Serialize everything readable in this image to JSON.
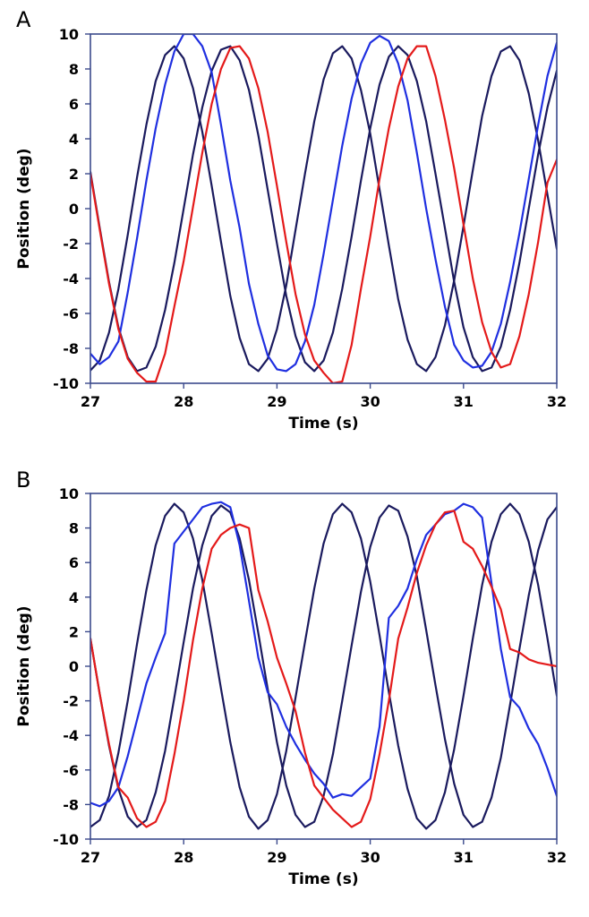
{
  "chart_data": [
    {
      "panel": "A",
      "type": "line",
      "xlabel": "Time (s)",
      "ylabel": "Position (deg)",
      "xlim": [
        27,
        32
      ],
      "ylim": [
        -10,
        10
      ],
      "xticks": [
        27,
        28,
        29,
        30,
        31,
        32
      ],
      "yticks": [
        -10,
        -8,
        -6,
        -4,
        -2,
        0,
        2,
        4,
        6,
        8,
        10
      ],
      "frame_color": "#3b4a8c",
      "series": [
        {
          "color": "#1a1a5e",
          "x": [
            27,
            27.1,
            27.2,
            27.3,
            27.4,
            27.5,
            27.6,
            27.7,
            27.8,
            27.9,
            28.0,
            28.1,
            28.2,
            28.3,
            28.4,
            28.5,
            28.6,
            28.7,
            28.8,
            28.9,
            29.0,
            29.1,
            29.2,
            29.3,
            29.4,
            29.5,
            29.6,
            29.7,
            29.8,
            29.9,
            30.0,
            30.1,
            30.2,
            30.3,
            30.4,
            30.5,
            30.6,
            30.7,
            30.8,
            30.9,
            31.0,
            31.1,
            31.2,
            31.3,
            31.4,
            31.5,
            31.6,
            31.7,
            31.8,
            31.9,
            32.0
          ],
          "y": [
            -9.26,
            -8.7,
            -7.1,
            -4.6,
            -1.5,
            1.8,
            4.8,
            7.3,
            8.8,
            9.3,
            8.6,
            6.9,
            4.4,
            1.3,
            -1.9,
            -5.0,
            -7.4,
            -8.9,
            -9.3,
            -8.6,
            -6.9,
            -4.4,
            -1.2,
            2.0,
            5.0,
            7.4,
            8.9,
            9.3,
            8.6,
            6.8,
            4.3,
            1.1,
            -2.1,
            -5.2,
            -7.5,
            -8.9,
            -9.3,
            -8.5,
            -6.7,
            -4.1,
            -1.0,
            2.2,
            5.3,
            7.6,
            9.0,
            9.3,
            8.5,
            6.6,
            3.9,
            0.8,
            -2.3
          ]
        },
        {
          "color": "#1a1a5e",
          "x": [
            27,
            27.1,
            27.2,
            27.3,
            27.4,
            27.5,
            27.6,
            27.7,
            27.8,
            27.9,
            28.0,
            28.1,
            28.2,
            28.3,
            28.4,
            28.5,
            28.6,
            28.7,
            28.8,
            28.9,
            29.0,
            29.1,
            29.2,
            29.3,
            29.4,
            29.5,
            29.6,
            29.7,
            29.8,
            29.9,
            30.0,
            30.1,
            30.2,
            30.3,
            30.4,
            30.5,
            30.6,
            30.7,
            30.8,
            30.9,
            31.0,
            31.1,
            31.2,
            31.3,
            31.4,
            31.5,
            31.6,
            31.7,
            31.8,
            31.9,
            32.0
          ],
          "y": [
            2.1,
            -1.1,
            -4.2,
            -6.8,
            -8.5,
            -9.3,
            -9.1,
            -7.9,
            -5.8,
            -3.1,
            0.0,
            3.1,
            5.8,
            7.9,
            9.1,
            9.3,
            8.5,
            6.8,
            4.2,
            1.1,
            -2.0,
            -5.0,
            -7.3,
            -8.8,
            -9.3,
            -8.7,
            -7.1,
            -4.6,
            -1.6,
            1.6,
            4.6,
            7.1,
            8.7,
            9.3,
            8.8,
            7.3,
            5.0,
            2.0,
            -1.1,
            -4.2,
            -6.8,
            -8.5,
            -9.3,
            -9.1,
            -7.9,
            -5.8,
            -3.1,
            0.0,
            3.1,
            5.8,
            7.9
          ]
        },
        {
          "color": "#1f2fe0",
          "x": [
            27,
            27.1,
            27.2,
            27.3,
            27.4,
            27.5,
            27.6,
            27.7,
            27.8,
            27.9,
            28.0,
            28.1,
            28.2,
            28.3,
            28.4,
            28.5,
            28.6,
            28.7,
            28.8,
            28.9,
            29.0,
            29.1,
            29.2,
            29.3,
            29.4,
            29.5,
            29.6,
            29.7,
            29.8,
            29.9,
            30.0,
            30.1,
            30.2,
            30.3,
            30.4,
            30.5,
            30.6,
            30.7,
            30.8,
            30.9,
            31.0,
            31.1,
            31.2,
            31.3,
            31.4,
            31.5,
            31.6,
            31.7,
            31.8,
            31.9,
            32.0
          ],
          "y": [
            -8.3,
            -8.9,
            -8.5,
            -7.6,
            -4.8,
            -1.7,
            1.6,
            4.6,
            7.1,
            9.0,
            10.0,
            10.0,
            9.3,
            7.8,
            4.8,
            1.6,
            -1.1,
            -4.3,
            -6.6,
            -8.4,
            -9.2,
            -9.3,
            -8.9,
            -7.6,
            -5.5,
            -2.6,
            0.5,
            3.6,
            6.3,
            8.3,
            9.5,
            9.9,
            9.6,
            8.3,
            6.2,
            3.2,
            0.0,
            -2.9,
            -5.6,
            -7.8,
            -8.7,
            -9.1,
            -9.0,
            -8.2,
            -6.6,
            -4.2,
            -1.4,
            1.7,
            4.8,
            7.6,
            9.5
          ]
        },
        {
          "color": "#e41a1a",
          "x": [
            27,
            27.1,
            27.2,
            27.3,
            27.4,
            27.5,
            27.6,
            27.7,
            27.8,
            27.9,
            28.0,
            28.1,
            28.2,
            28.3,
            28.4,
            28.5,
            28.6,
            28.7,
            28.8,
            28.9,
            29.0,
            29.1,
            29.2,
            29.3,
            29.4,
            29.5,
            29.6,
            29.7,
            29.8,
            29.9,
            30.0,
            30.1,
            30.2,
            30.3,
            30.4,
            30.5,
            30.6,
            30.7,
            30.8,
            30.9,
            31.0,
            31.1,
            31.2,
            31.3,
            31.4,
            31.5,
            31.6,
            31.7,
            31.8,
            31.9,
            32.0
          ],
          "y": [
            2.0,
            -1.2,
            -4.3,
            -6.9,
            -8.6,
            -9.4,
            -9.9,
            -9.9,
            -8.3,
            -5.6,
            -3.0,
            0.1,
            3.2,
            6.0,
            8.0,
            9.2,
            9.3,
            8.6,
            6.9,
            4.4,
            1.3,
            -1.9,
            -4.9,
            -7.2,
            -8.7,
            -9.4,
            -10.0,
            -9.9,
            -7.8,
            -4.6,
            -1.6,
            1.7,
            4.6,
            7.0,
            8.6,
            9.3,
            9.3,
            7.6,
            5.1,
            2.3,
            -0.9,
            -4.0,
            -6.5,
            -8.2,
            -9.1,
            -8.9,
            -7.3,
            -4.9,
            -1.9,
            1.5,
            2.8
          ]
        }
      ]
    },
    {
      "panel": "B",
      "type": "line",
      "xlabel": "Time (s)",
      "ylabel": "Position (deg)",
      "xlim": [
        27,
        32
      ],
      "ylim": [
        -10,
        10
      ],
      "xticks": [
        27,
        28,
        29,
        30,
        31,
        32
      ],
      "yticks": [
        -10,
        -8,
        -6,
        -4,
        -2,
        0,
        2,
        4,
        6,
        8,
        10
      ],
      "frame_color": "#3b4a8c",
      "series": [
        {
          "color": "#1a1a5e",
          "x": [
            27,
            27.1,
            27.2,
            27.3,
            27.4,
            27.5,
            27.6,
            27.7,
            27.8,
            27.9,
            28.0,
            28.1,
            28.2,
            28.3,
            28.4,
            28.5,
            28.6,
            28.7,
            28.8,
            28.9,
            29.0,
            29.1,
            29.2,
            29.3,
            29.4,
            29.5,
            29.6,
            29.7,
            29.8,
            29.9,
            30.0,
            30.1,
            30.2,
            30.3,
            30.4,
            30.5,
            30.6,
            30.7,
            30.8,
            30.9,
            31.0,
            31.1,
            31.2,
            31.3,
            31.4,
            31.5,
            31.6,
            31.7,
            31.8,
            31.9,
            32.0
          ],
          "y": [
            -9.3,
            -8.9,
            -7.5,
            -5.0,
            -2.0,
            1.3,
            4.4,
            7.0,
            8.7,
            9.4,
            8.9,
            7.4,
            5.0,
            1.9,
            -1.3,
            -4.4,
            -7.0,
            -8.7,
            -9.4,
            -8.9,
            -7.4,
            -4.9,
            -1.8,
            1.4,
            4.5,
            7.1,
            8.8,
            9.4,
            8.9,
            7.4,
            4.9,
            1.8,
            -1.5,
            -4.6,
            -7.1,
            -8.8,
            -9.4,
            -8.9,
            -7.3,
            -4.8,
            -1.7,
            1.6,
            4.7,
            7.2,
            8.8,
            9.4,
            8.8,
            7.2,
            4.7,
            1.6,
            -1.7
          ]
        },
        {
          "color": "#1a1a5e",
          "x": [
            27,
            27.1,
            27.2,
            27.3,
            27.4,
            27.5,
            27.6,
            27.7,
            27.8,
            27.9,
            28.0,
            28.1,
            28.2,
            28.3,
            28.4,
            28.5,
            28.6,
            28.7,
            28.8,
            28.9,
            29.0,
            29.1,
            29.2,
            29.3,
            29.4,
            29.5,
            29.6,
            29.7,
            29.8,
            29.9,
            30.0,
            30.1,
            30.2,
            30.3,
            30.4,
            30.5,
            30.6,
            30.7,
            30.8,
            30.9,
            31.0,
            31.1,
            31.2,
            31.3,
            31.4,
            31.5,
            31.6,
            31.7,
            31.8,
            31.9,
            32.0
          ],
          "y": [
            1.6,
            -1.6,
            -4.6,
            -7.1,
            -8.7,
            -9.3,
            -8.9,
            -7.3,
            -4.9,
            -1.8,
            1.4,
            4.5,
            7.0,
            8.7,
            9.3,
            8.9,
            7.4,
            5.0,
            1.9,
            -1.3,
            -4.4,
            -6.9,
            -8.6,
            -9.3,
            -9.0,
            -7.5,
            -5.1,
            -2.0,
            1.2,
            4.3,
            6.9,
            8.6,
            9.3,
            9.0,
            7.5,
            5.2,
            2.1,
            -1.1,
            -4.2,
            -6.8,
            -8.6,
            -9.3,
            -9.0,
            -7.6,
            -5.3,
            -2.2,
            1.0,
            4.1,
            6.7,
            8.5,
            9.2
          ]
        },
        {
          "color": "#1f2fe0",
          "x": [
            27,
            27.1,
            27.2,
            27.3,
            27.4,
            27.5,
            27.6,
            27.7,
            27.8,
            27.9,
            28.0,
            28.1,
            28.2,
            28.3,
            28.4,
            28.5,
            28.6,
            28.7,
            28.8,
            28.9,
            29.0,
            29.1,
            29.2,
            29.3,
            29.4,
            29.5,
            29.6,
            29.7,
            29.8,
            29.9,
            30.0,
            30.1,
            30.2,
            30.3,
            30.4,
            30.5,
            30.6,
            30.7,
            30.8,
            30.9,
            31.0,
            31.1,
            31.2,
            31.3,
            31.4,
            31.5,
            31.6,
            31.7,
            31.8,
            31.9,
            32.0
          ],
          "y": [
            -7.9,
            -8.1,
            -7.8,
            -7.0,
            -5.2,
            -3.1,
            -1.0,
            0.5,
            1.9,
            7.1,
            7.8,
            8.5,
            9.2,
            9.4,
            9.5,
            9.2,
            7.0,
            3.8,
            0.5,
            -1.5,
            -2.2,
            -3.5,
            -4.5,
            -5.4,
            -6.2,
            -6.8,
            -7.6,
            -7.4,
            -7.5,
            -7.0,
            -6.5,
            -3.5,
            2.8,
            3.5,
            4.5,
            6.2,
            7.6,
            8.2,
            8.8,
            9.0,
            9.4,
            9.2,
            8.6,
            4.8,
            1.0,
            -1.8,
            -2.4,
            -3.6,
            -4.5,
            -5.9,
            -7.5
          ]
        },
        {
          "color": "#e41a1a",
          "x": [
            27,
            27.1,
            27.2,
            27.3,
            27.4,
            27.5,
            27.6,
            27.7,
            27.8,
            27.9,
            28.0,
            28.1,
            28.2,
            28.3,
            28.4,
            28.5,
            28.6,
            28.7,
            28.8,
            28.9,
            29.0,
            29.1,
            29.2,
            29.3,
            29.4,
            29.5,
            29.6,
            29.7,
            29.8,
            29.9,
            30.0,
            30.1,
            30.2,
            30.3,
            30.4,
            30.5,
            30.6,
            30.7,
            30.8,
            30.9,
            31.0,
            31.1,
            31.2,
            31.3,
            31.4,
            31.5,
            31.6,
            31.7,
            31.8,
            31.9,
            32.0
          ],
          "y": [
            1.6,
            -1.6,
            -4.5,
            -7.0,
            -7.6,
            -8.8,
            -9.3,
            -9.0,
            -7.8,
            -5.1,
            -2.0,
            1.5,
            4.5,
            6.8,
            7.6,
            8.0,
            8.2,
            8.0,
            4.4,
            2.6,
            0.5,
            -1.0,
            -2.6,
            -5.0,
            -6.9,
            -7.6,
            -8.3,
            -8.8,
            -9.3,
            -9.0,
            -7.7,
            -5.1,
            -2.0,
            1.6,
            3.4,
            5.4,
            7.0,
            8.2,
            8.9,
            9.0,
            7.2,
            6.8,
            5.8,
            4.6,
            3.3,
            1.0,
            0.8,
            0.4,
            0.2,
            0.1,
            0.0
          ]
        }
      ]
    }
  ]
}
